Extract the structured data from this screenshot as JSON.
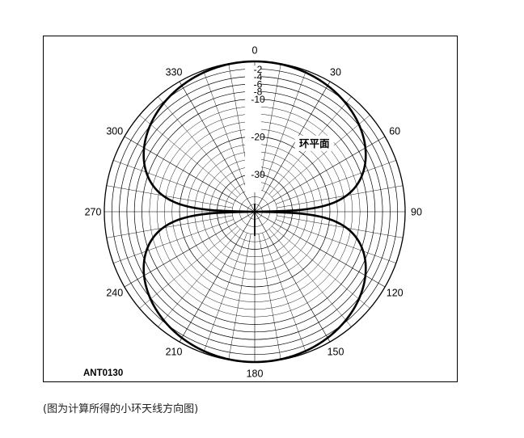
{
  "chart_data": {
    "type": "polar",
    "title": "",
    "figure_code": "ANT0130",
    "plane_label": "环平面",
    "angle_ticks": [
      "0",
      "30",
      "60",
      "90",
      "120",
      "150",
      "180",
      "210",
      "240",
      "270",
      "300",
      "330"
    ],
    "radial_ticks": [
      "-2",
      "-4",
      "-6",
      "-8",
      "-10",
      "-20",
      "-30"
    ],
    "radial_levels_db": [
      -2,
      -4,
      -6,
      -8,
      -10,
      -20,
      -30
    ],
    "radial_range_db": [
      -40,
      0
    ],
    "angle_grid_step_deg": 10,
    "series": [
      {
        "name": "小环天线方向图",
        "pattern": "figure-eight",
        "angles_deg": [
          0,
          10,
          20,
          30,
          40,
          50,
          60,
          70,
          80,
          85,
          90,
          95,
          100,
          110,
          120,
          130,
          140,
          150,
          160,
          170,
          180,
          190,
          200,
          210,
          220,
          230,
          240,
          250,
          260,
          265,
          270,
          275,
          280,
          290,
          300,
          310,
          320,
          330,
          340,
          350,
          360
        ],
        "gain_db": [
          0,
          -0.13,
          -0.54,
          -1.25,
          -2.32,
          -3.87,
          -6.02,
          -9.32,
          -15.2,
          -21.2,
          -40,
          -21.2,
          -15.2,
          -9.32,
          -6.02,
          -3.87,
          -2.32,
          -1.25,
          -0.54,
          -0.13,
          0,
          -0.13,
          -0.54,
          -1.25,
          -2.32,
          -3.87,
          -6.02,
          -9.32,
          -15.2,
          -21.2,
          -40,
          -21.2,
          -15.2,
          -9.32,
          -6.02,
          -3.87,
          -2.32,
          -1.25,
          -0.54,
          -0.13,
          0
        ]
      }
    ]
  },
  "caption": "(图为计算所得的小环天线方向图)"
}
